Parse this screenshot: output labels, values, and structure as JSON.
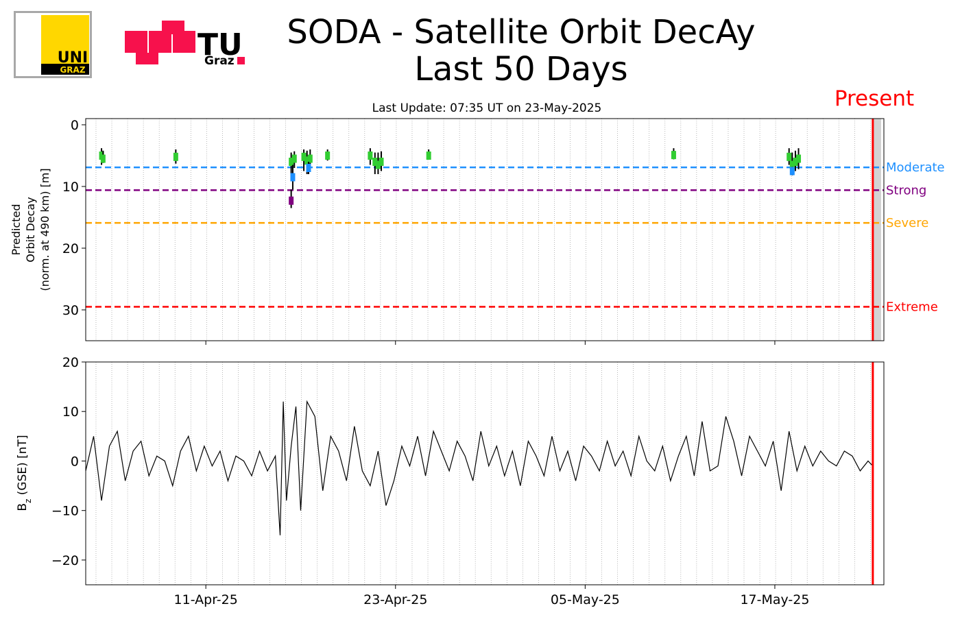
{
  "header": {
    "title_line1": "SODA - Satellite Orbit DecAy",
    "title_line2": "Last 50 Days",
    "subtitle": "Last Update: 07:35 UT on 23-May-2025",
    "present_label": "Present",
    "logo_uni_text": "UNI",
    "logo_uni_sub": "GRAZ",
    "logo_tu_text": "TU",
    "logo_tu_sub": "Graz"
  },
  "colors": {
    "moderate": "#1e90ff",
    "strong": "#800080",
    "severe": "#ffa500",
    "extreme": "#ff0000",
    "points": "#32cd32",
    "present_line": "#ff0000",
    "future_shade": "#d3d3d3"
  },
  "chart_data": [
    {
      "type": "scatter",
      "ylabel_lines": [
        "Predicted",
        "Orbit Decay",
        "(norm. at 490 km) [m]"
      ],
      "xlabel": "",
      "x_axis": "days",
      "xlim": [
        0,
        50.5
      ],
      "ylim": [
        35,
        -1
      ],
      "yticks": [
        0,
        10,
        20,
        30
      ],
      "inverted_y": true,
      "grid": "vertical dotted daily",
      "present_x": 49.8,
      "thresholds": [
        {
          "name": "Moderate",
          "value": 6.9,
          "color": "#1e90ff"
        },
        {
          "name": "Strong",
          "value": 10.6,
          "color": "#800080"
        },
        {
          "name": "Severe",
          "value": 15.9,
          "color": "#ffa500"
        },
        {
          "name": "Extreme",
          "value": 29.5,
          "color": "#ff0000"
        }
      ],
      "points": [
        {
          "x": 1.0,
          "y": 5.0,
          "ymin": 3.8,
          "ymax": 6.5,
          "color": "#32cd32"
        },
        {
          "x": 1.1,
          "y": 5.5,
          "ymin": 4.2,
          "ymax": 6.2,
          "color": "#32cd32"
        },
        {
          "x": 5.7,
          "y": 5.2,
          "ymin": 4.0,
          "ymax": 6.3,
          "color": "#32cd32"
        },
        {
          "x": 13.0,
          "y": 6.0,
          "ymin": 4.5,
          "ymax": 8.0,
          "color": "#32cd32"
        },
        {
          "x": 13.1,
          "y": 8.5,
          "ymin": 6.5,
          "ymax": 10.5,
          "color": "#1e90ff"
        },
        {
          "x": 13.0,
          "y": 12.3,
          "ymin": 10.5,
          "ymax": 13.5,
          "color": "#800080"
        },
        {
          "x": 13.2,
          "y": 5.5,
          "ymin": 4.3,
          "ymax": 7.0,
          "color": "#32cd32"
        },
        {
          "x": 13.8,
          "y": 5.2,
          "ymin": 4.0,
          "ymax": 7.5,
          "color": "#32cd32"
        },
        {
          "x": 14.0,
          "y": 5.8,
          "ymin": 4.2,
          "ymax": 8.0,
          "color": "#32cd32"
        },
        {
          "x": 14.2,
          "y": 5.5,
          "ymin": 4.0,
          "ymax": 7.0,
          "color": "#32cd32"
        },
        {
          "x": 14.1,
          "y": 7.0,
          "ymin": 6.0,
          "ymax": 8.0,
          "color": "#1e90ff"
        },
        {
          "x": 15.3,
          "y": 5.0,
          "ymin": 4.0,
          "ymax": 5.8,
          "color": "#32cd32"
        },
        {
          "x": 18.0,
          "y": 5.0,
          "ymin": 3.8,
          "ymax": 6.5,
          "color": "#32cd32"
        },
        {
          "x": 18.3,
          "y": 6.0,
          "ymin": 4.5,
          "ymax": 8.0,
          "color": "#32cd32"
        },
        {
          "x": 18.5,
          "y": 6.5,
          "ymin": 4.5,
          "ymax": 8.0,
          "color": "#32cd32"
        },
        {
          "x": 18.7,
          "y": 6.0,
          "ymin": 4.3,
          "ymax": 7.5,
          "color": "#32cd32"
        },
        {
          "x": 21.7,
          "y": 5.0,
          "ymin": 4.0,
          "ymax": 5.6,
          "color": "#32cd32"
        },
        {
          "x": 37.2,
          "y": 4.9,
          "ymin": 3.8,
          "ymax": 5.6,
          "color": "#32cd32"
        },
        {
          "x": 44.5,
          "y": 5.2,
          "ymin": 3.8,
          "ymax": 6.5,
          "color": "#32cd32"
        },
        {
          "x": 44.7,
          "y": 6.5,
          "ymin": 4.5,
          "ymax": 8.0,
          "color": "#32cd32"
        },
        {
          "x": 44.9,
          "y": 6.0,
          "ymin": 4.2,
          "ymax": 7.5,
          "color": "#32cd32"
        },
        {
          "x": 45.1,
          "y": 5.5,
          "ymin": 3.8,
          "ymax": 7.2,
          "color": "#32cd32"
        },
        {
          "x": 44.7,
          "y": 7.5,
          "ymin": 6.8,
          "ymax": 8.2,
          "color": "#1e90ff"
        }
      ]
    },
    {
      "type": "line",
      "ylabel": "B_z (GSE) [nT]",
      "ylabel_main": "B",
      "ylabel_sub": "z",
      "ylabel_rest": " (GSE) [nT]",
      "xlim": [
        0,
        50.5
      ],
      "ylim": [
        -25,
        20
      ],
      "yticks": [
        20,
        10,
        0,
        -10,
        -20
      ],
      "ytick_labels": [
        "20",
        "10",
        "0",
        "−10",
        "−20"
      ],
      "xticks": [
        7.6,
        19.6,
        31.6,
        43.6
      ],
      "xtick_labels": [
        "11-Apr-25",
        "23-Apr-25",
        "05-May-25",
        "17-May-25"
      ],
      "present_x": 49.8,
      "series": [
        {
          "color": "#000000",
          "x": [
            0,
            0.5,
            1,
            1.5,
            2,
            2.5,
            3,
            3.5,
            4,
            4.5,
            5,
            5.5,
            6,
            6.5,
            7,
            7.5,
            8,
            8.5,
            9,
            9.5,
            10,
            10.5,
            11,
            11.5,
            12,
            12.3,
            12.5,
            12.7,
            13,
            13.3,
            13.6,
            14,
            14.5,
            15,
            15.5,
            16,
            16.5,
            17,
            17.5,
            18,
            18.5,
            19,
            19.5,
            20,
            20.5,
            21,
            21.5,
            22,
            22.5,
            23,
            23.5,
            24,
            24.5,
            25,
            25.5,
            26,
            26.5,
            27,
            27.5,
            28,
            28.5,
            29,
            29.5,
            30,
            30.5,
            31,
            31.5,
            32,
            32.5,
            33,
            33.5,
            34,
            34.5,
            35,
            35.5,
            36,
            36.5,
            37,
            37.5,
            38,
            38.5,
            39,
            39.5,
            40,
            40.5,
            41,
            41.5,
            42,
            42.5,
            43,
            43.5,
            44,
            44.5,
            45,
            45.5,
            46,
            46.5,
            47,
            47.5,
            48,
            48.5,
            49,
            49.5,
            49.8
          ],
          "y": [
            -2,
            5,
            -8,
            3,
            6,
            -4,
            2,
            4,
            -3,
            1,
            0,
            -5,
            2,
            5,
            -2,
            3,
            -1,
            2,
            -4,
            1,
            0,
            -3,
            2,
            -2,
            1,
            -15,
            12,
            -8,
            3,
            11,
            -10,
            12,
            9,
            -6,
            5,
            2,
            -4,
            7,
            -2,
            -5,
            2,
            -9,
            -4,
            3,
            -1,
            5,
            -3,
            6,
            2,
            -2,
            4,
            1,
            -4,
            6,
            -1,
            3,
            -3,
            2,
            -5,
            4,
            1,
            -3,
            5,
            -2,
            2,
            -4,
            3,
            1,
            -2,
            4,
            -1,
            2,
            -3,
            5,
            0,
            -2,
            3,
            -4,
            1,
            5,
            -3,
            8,
            -2,
            -1,
            9,
            4,
            -3,
            5,
            2,
            -1,
            4,
            -6,
            6,
            -2,
            3,
            -1,
            2,
            0,
            -1,
            2,
            1,
            -2,
            0,
            -1
          ]
        }
      ]
    }
  ]
}
